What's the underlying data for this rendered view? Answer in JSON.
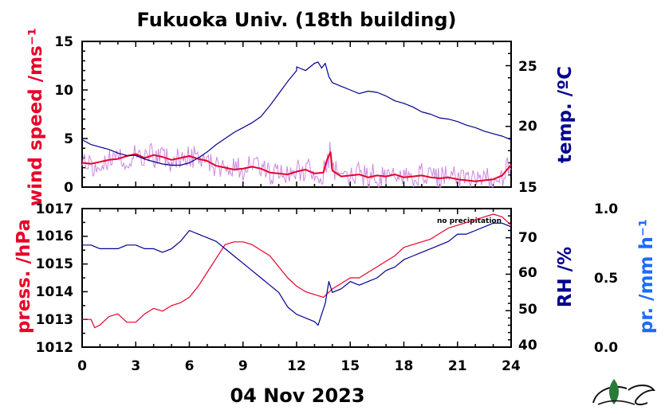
{
  "colors": {
    "wind": "#e8002a",
    "wind_raw": "#cc88e0",
    "temp": "#000090",
    "press": "#e8002a",
    "rh": "#000090",
    "precip": "#1a6cff",
    "text": "#000000"
  },
  "chart_data": [
    {
      "type": "line",
      "title": "Fukuoka Univ. (18th building)",
      "xlim": [
        0,
        24
      ],
      "x_ticks": [
        "0",
        "3",
        "6",
        "9",
        "12",
        "15",
        "18",
        "21",
        "24"
      ],
      "y_left": {
        "label": "wind speed /ms⁻¹",
        "lim": [
          0,
          15
        ],
        "ticks": [
          "0",
          "5",
          "10",
          "15"
        ]
      },
      "y_right": {
        "label": "temp. /ºC",
        "lim": [
          15,
          27
        ],
        "ticks": [
          "15",
          "20",
          "25"
        ]
      },
      "series": [
        {
          "axis": "left",
          "color_key": "wind",
          "x": [
            0,
            0.5,
            1,
            1.5,
            2,
            2.5,
            3,
            3.5,
            4,
            4.5,
            5,
            5.5,
            6,
            6.5,
            7,
            7.5,
            8,
            8.5,
            9,
            9.5,
            10,
            10.5,
            11,
            11.5,
            12,
            12.5,
            13,
            13.5,
            13.7,
            13.9,
            14,
            14.5,
            15,
            15.5,
            16,
            16.5,
            17,
            17.5,
            18,
            18.5,
            19,
            19.5,
            20,
            20.5,
            21,
            21.5,
            22,
            22.5,
            23,
            23.5,
            24
          ],
          "y": [
            2.5,
            2.4,
            2.6,
            2.8,
            2.9,
            3.2,
            3.4,
            3.0,
            3.3,
            3.1,
            2.8,
            3.0,
            3.2,
            2.9,
            2.7,
            2.2,
            2.0,
            1.8,
            1.9,
            2.1,
            1.9,
            1.5,
            1.4,
            1.3,
            1.6,
            1.8,
            1.4,
            1.5,
            2.8,
            3.6,
            1.7,
            1.1,
            1.2,
            1.3,
            1.0,
            1.2,
            1.1,
            1.3,
            1.0,
            1.1,
            1.2,
            1.0,
            0.9,
            1.0,
            0.8,
            0.7,
            0.6,
            0.7,
            0.8,
            1.2,
            2.3
          ]
        },
        {
          "axis": "right",
          "color_key": "temp",
          "x": [
            0,
            0.5,
            1,
            1.5,
            2,
            2.5,
            3,
            3.5,
            4,
            4.5,
            5,
            5.5,
            6,
            6.5,
            7,
            7.5,
            8,
            8.5,
            9,
            9.5,
            10,
            10.5,
            11,
            11.5,
            12,
            12,
            12.5,
            13,
            13.2,
            13.4,
            13.6,
            13.8,
            14,
            14.5,
            15,
            15.5,
            16,
            16.5,
            17,
            17.5,
            18,
            18.5,
            19,
            19.5,
            20,
            20.5,
            21,
            21.5,
            22,
            22.5,
            23,
            23.5,
            24
          ],
          "y": [
            18.9,
            18.5,
            18.3,
            18.1,
            17.8,
            17.6,
            17.6,
            17.3,
            17.1,
            16.9,
            16.8,
            16.8,
            17.0,
            17.4,
            17.9,
            18.5,
            19.0,
            19.5,
            19.9,
            20.3,
            20.8,
            21.7,
            22.7,
            23.7,
            24.6,
            24.9,
            24.6,
            25.2,
            25.3,
            24.8,
            25.2,
            24.1,
            23.6,
            23.3,
            23.0,
            22.7,
            22.9,
            22.8,
            22.5,
            22.1,
            21.9,
            21.6,
            21.2,
            21.0,
            20.7,
            20.6,
            20.4,
            20.1,
            19.9,
            19.6,
            19.4,
            19.2,
            18.9
          ]
        }
      ]
    },
    {
      "type": "line",
      "xlim": [
        0,
        24
      ],
      "xlabel": "04 Nov 2023",
      "x_ticks": [
        "0",
        "3",
        "6",
        "9",
        "12",
        "15",
        "18",
        "21",
        "24"
      ],
      "annotation": "no precipitation",
      "y_left": {
        "label": "press. /hPa",
        "lim": [
          1012,
          1017
        ],
        "ticks": [
          "1012",
          "1013",
          "1014",
          "1015",
          "1016",
          "1017"
        ]
      },
      "y_right": {
        "label": "RH /%",
        "lim": [
          40,
          78
        ],
        "ticks": [
          "40",
          "50",
          "60",
          "70"
        ]
      },
      "y_right2": {
        "label": "pr. /mm h⁻¹",
        "lim": [
          0,
          1
        ],
        "ticks": [
          "0.0",
          "0.5",
          "1.0"
        ]
      },
      "series": [
        {
          "axis": "left",
          "color_key": "press",
          "x": [
            0,
            0.5,
            0.7,
            1,
            1.5,
            2,
            2.5,
            3,
            3.5,
            4,
            4.5,
            5,
            5.5,
            6,
            6.5,
            7,
            7.5,
            8,
            8.5,
            9,
            9.5,
            10,
            10.5,
            11,
            11.5,
            12,
            12.5,
            13,
            13.5,
            14,
            14.5,
            15,
            15.5,
            16,
            16.5,
            17,
            17.5,
            18,
            18.5,
            19,
            19.5,
            20,
            20.5,
            21,
            21.5,
            22,
            22.5,
            23,
            23.5,
            24
          ],
          "y": [
            1013.0,
            1013.0,
            1012.7,
            1012.8,
            1013.1,
            1013.2,
            1012.9,
            1012.9,
            1013.2,
            1013.4,
            1013.3,
            1013.5,
            1013.6,
            1013.8,
            1014.2,
            1014.7,
            1015.2,
            1015.7,
            1015.8,
            1015.8,
            1015.7,
            1015.5,
            1015.3,
            1014.9,
            1014.5,
            1014.2,
            1014.0,
            1013.9,
            1013.8,
            1014.1,
            1014.3,
            1014.5,
            1014.5,
            1014.7,
            1014.9,
            1015.1,
            1015.3,
            1015.6,
            1015.7,
            1015.8,
            1015.9,
            1016.1,
            1016.3,
            1016.4,
            1016.5,
            1016.6,
            1016.7,
            1016.8,
            1016.7,
            1016.4
          ]
        },
        {
          "axis": "right",
          "color_key": "rh",
          "x": [
            0,
            0.5,
            1,
            1.5,
            2,
            2.5,
            3,
            3.5,
            4,
            4.5,
            5,
            5.5,
            6,
            6.5,
            7,
            7.5,
            8,
            8.5,
            9,
            9.5,
            10,
            10.5,
            11,
            11.5,
            12,
            12.5,
            13,
            13.2,
            13.4,
            13.6,
            13.8,
            14,
            14.5,
            15,
            15.5,
            16,
            16.5,
            17,
            17.5,
            18,
            18.5,
            19,
            19.5,
            20,
            20.5,
            21,
            21.5,
            22,
            22.5,
            23,
            23.5,
            24
          ],
          "y": [
            68,
            68,
            67,
            67,
            67,
            68,
            68,
            67,
            67,
            66,
            67,
            69,
            72,
            71,
            70,
            69,
            67,
            65,
            63,
            61,
            59,
            57,
            55,
            51,
            49,
            48,
            47,
            46,
            49,
            52,
            58,
            55,
            56,
            58,
            57,
            58,
            59,
            61,
            62,
            64,
            65,
            66,
            67,
            68,
            69,
            71,
            71,
            72,
            73,
            74,
            74,
            73
          ]
        }
      ]
    }
  ]
}
